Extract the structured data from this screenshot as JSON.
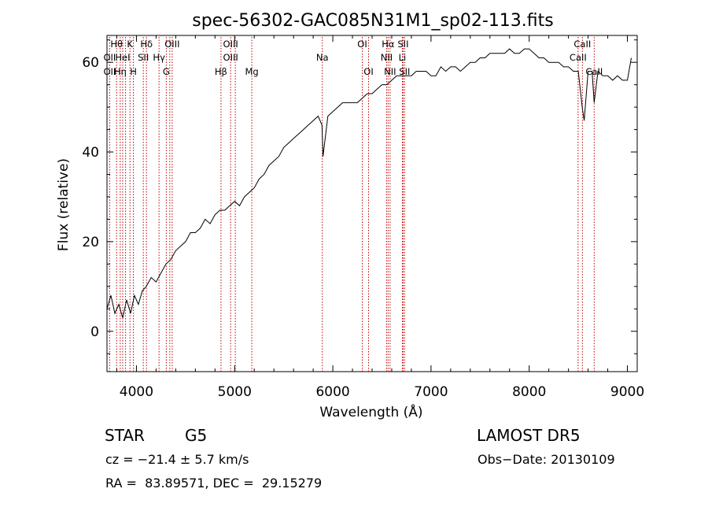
{
  "chart_data": {
    "type": "line",
    "title": "spec-56302-GAC085N31M1_sp02-113.fits",
    "xlabel": "Wavelength (Å)",
    "ylabel": "Flux (relative)",
    "xlim": [
      3700,
      9100
    ],
    "ylim": [
      -9,
      66
    ],
    "x_ticks": [
      4000,
      5000,
      6000,
      7000,
      8000,
      9000
    ],
    "y_ticks": [
      0,
      20,
      40,
      60
    ],
    "x_tick_labels": [
      "4000",
      "5000",
      "6000",
      "7000",
      "8000",
      "9000"
    ],
    "y_tick_labels": [
      "0",
      "20",
      "40",
      "60"
    ],
    "grid": false,
    "line_color": "#000000",
    "marker_color": "#c00000",
    "series": [
      {
        "x": [
          3700,
          3740,
          3780,
          3820,
          3860,
          3900,
          3940,
          3980,
          4020,
          4060,
          4100,
          4150,
          4200,
          4250,
          4300,
          4350,
          4400,
          4450,
          4500,
          4550,
          4600,
          4650,
          4700,
          4750,
          4800,
          4850,
          4900,
          4950,
          5000,
          5050,
          5100,
          5150,
          5200,
          5250,
          5300,
          5350,
          5400,
          5450,
          5500,
          5550,
          5600,
          5650,
          5700,
          5750,
          5800,
          5850,
          5890,
          5900,
          5950,
          6000,
          6050,
          6100,
          6150,
          6200,
          6250,
          6300,
          6350,
          6400,
          6450,
          6500,
          6550,
          6600,
          6650,
          6700,
          6750,
          6800,
          6850,
          6900,
          6950,
          7000,
          7050,
          7100,
          7150,
          7200,
          7250,
          7300,
          7350,
          7400,
          7450,
          7500,
          7550,
          7600,
          7650,
          7700,
          7750,
          7800,
          7850,
          7900,
          7950,
          8000,
          8050,
          8100,
          8150,
          8200,
          8250,
          8300,
          8350,
          8400,
          8450,
          8500,
          8540,
          8560,
          8600,
          8640,
          8662,
          8700,
          8750,
          8800,
          8850,
          8900,
          8950,
          9000,
          9040
        ],
        "y": [
          5,
          8,
          4,
          6,
          3,
          7,
          4,
          8,
          6,
          9,
          10,
          12,
          11,
          13,
          15,
          16,
          18,
          19,
          20,
          22,
          22,
          23,
          25,
          24,
          26,
          27,
          27,
          28,
          29,
          28,
          30,
          31,
          32,
          34,
          35,
          37,
          38,
          39,
          41,
          42,
          43,
          44,
          45,
          46,
          47,
          48,
          46,
          39,
          48,
          49,
          50,
          51,
          51,
          51,
          51,
          52,
          53,
          53,
          54,
          55,
          55,
          56,
          57,
          57,
          57,
          57,
          58,
          58,
          58,
          57,
          57,
          59,
          58,
          59,
          59,
          58,
          59,
          60,
          60,
          61,
          61,
          62,
          62,
          62,
          62,
          63,
          62,
          62,
          63,
          63,
          62,
          61,
          61,
          60,
          60,
          60,
          59,
          59,
          58,
          58,
          50,
          47,
          58,
          58,
          51,
          58,
          57,
          57,
          56,
          57,
          56,
          56,
          61
        ]
      }
    ],
    "line_markers": [
      {
        "x": 3798,
        "label": "Hθ",
        "row": 0
      },
      {
        "x": 3835,
        "label": "",
        "row": 0
      },
      {
        "x": 3889,
        "label": "",
        "row": 0
      },
      {
        "x": 3934,
        "label": "K",
        "row": 0
      },
      {
        "x": 3969,
        "label": "",
        "row": 0
      },
      {
        "x": 4102,
        "label": "Hδ",
        "row": 0
      },
      {
        "x": 4340,
        "label": "",
        "row": 0
      },
      {
        "x": 4364,
        "label": "OIII",
        "row": 0
      },
      {
        "x": 4861,
        "label": "",
        "row": 0
      },
      {
        "x": 4959,
        "label": "OIII",
        "row": 0
      },
      {
        "x": 5007,
        "label": "",
        "row": 0
      },
      {
        "x": 5175,
        "label": "",
        "row": 0
      },
      {
        "x": 5893,
        "label": "",
        "row": 0
      },
      {
        "x": 6300,
        "label": "OI",
        "row": 0
      },
      {
        "x": 6364,
        "label": "",
        "row": 0
      },
      {
        "x": 6548,
        "label": "",
        "row": 0
      },
      {
        "x": 6563,
        "label": "Hα",
        "row": 0
      },
      {
        "x": 6583,
        "label": "",
        "row": 0
      },
      {
        "x": 6708,
        "label": "",
        "row": 0
      },
      {
        "x": 6716,
        "label": "SII",
        "row": 0
      },
      {
        "x": 6731,
        "label": "",
        "row": 0
      },
      {
        "x": 8498,
        "label": "",
        "row": 0
      },
      {
        "x": 8542,
        "label": "CaII",
        "row": 0
      },
      {
        "x": 8662,
        "label": "",
        "row": 0
      },
      {
        "x": 3727,
        "label": "OII",
        "row": 1
      },
      {
        "x": 3860,
        "label": "HeI",
        "row": 1
      },
      {
        "x": 4070,
        "label": "SII",
        "row": 1
      },
      {
        "x": 4230,
        "label": "Hγ",
        "row": 1
      },
      {
        "x": 4959,
        "label": "OIII",
        "row": 1
      },
      {
        "x": 6548,
        "label": "NII",
        "row": 1
      },
      {
        "x": 6708,
        "label": "Li",
        "row": 1
      },
      {
        "x": 8498,
        "label": "CaII",
        "row": 1
      },
      {
        "x": 3727,
        "label": "OII",
        "row": 2
      },
      {
        "x": 3835,
        "label": "Hη",
        "row": 2
      },
      {
        "x": 3969,
        "label": "H",
        "row": 2
      },
      {
        "x": 4304,
        "label": "G",
        "row": 2
      },
      {
        "x": 4861,
        "label": "Hβ",
        "row": 2
      },
      {
        "x": 5175,
        "label": "Mg",
        "row": 2
      },
      {
        "x": 5893,
        "label": "Na",
        "row": 1
      },
      {
        "x": 6364,
        "label": "OI",
        "row": 2
      },
      {
        "x": 6583,
        "label": "NII",
        "row": 2
      },
      {
        "x": 6731,
        "label": "SII",
        "row": 2
      },
      {
        "x": 8662,
        "label": "CaII",
        "row": 2
      }
    ]
  },
  "info": {
    "class": "STAR",
    "subclass": "G5",
    "survey": "LAMOST DR5",
    "cz": "cz = −21.4 ± 5.7 km/s",
    "obs_date": "Obs−Date: 20130109",
    "radec": "RA =  83.89571, DEC =  29.15279"
  }
}
